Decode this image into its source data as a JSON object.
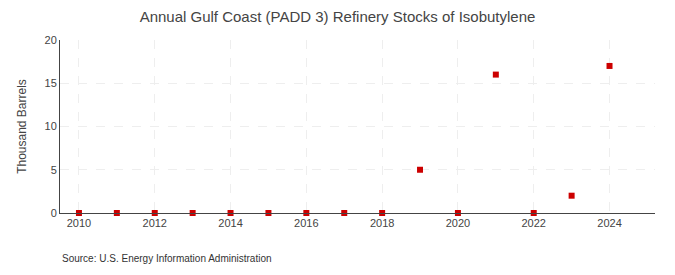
{
  "chart_data": {
    "type": "scatter",
    "title": "Annual Gulf Coast (PADD 3) Refinery Stocks of Isobutylene",
    "ylabel": "Thousand Barrels",
    "annotations": [
      "Source: U.S. Energy Information Administration"
    ],
    "x": [
      2010,
      2011,
      2012,
      2013,
      2014,
      2015,
      2016,
      2017,
      2018,
      2019,
      2020,
      2021,
      2022,
      2023,
      2024
    ],
    "values": [
      0,
      0,
      0,
      0,
      0,
      0,
      0,
      0,
      0,
      5,
      0,
      16,
      0,
      2,
      17
    ],
    "color": "#cc0000",
    "marker": "square",
    "xlim": [
      2009.5,
      2025.2
    ],
    "ylim": [
      0,
      20
    ],
    "xticks": [
      2010,
      2012,
      2014,
      2016,
      2018,
      2020,
      2022,
      2024
    ],
    "yticks": [
      0,
      5,
      10,
      15,
      20
    ],
    "grid": true
  }
}
